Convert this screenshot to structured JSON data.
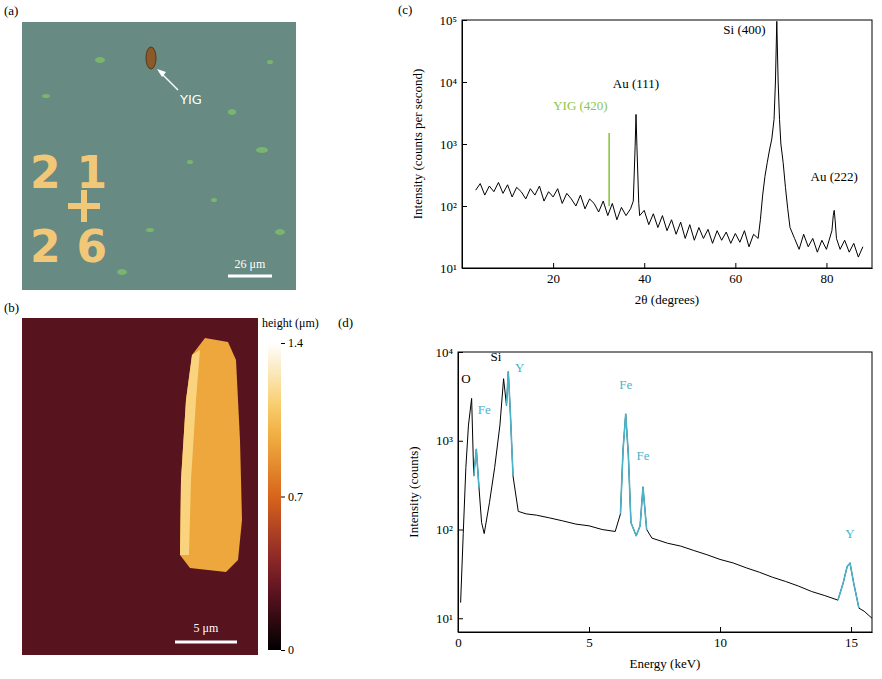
{
  "chart_data": [
    {
      "type": "image",
      "title": "(a)",
      "annotations": [
        "YIG"
      ],
      "markers": [
        "21",
        "26"
      ],
      "scale_bar": "26 μm"
    },
    {
      "type": "heatmap",
      "title": "(b)",
      "scale_bar": "5 μm",
      "colorbar": {
        "label": "height (μm)",
        "lim": [
          0,
          1.4
        ],
        "ticks": [
          0,
          0.7,
          1.4
        ]
      },
      "substrate_height": 0.25,
      "flake_height": 0.95,
      "edge_height": 1.15
    },
    {
      "type": "line",
      "title": "(c)",
      "x_label": "2θ (degrees)",
      "y_label": "Intensity (counts per second)",
      "log": "y",
      "xlim": [
        0,
        90
      ],
      "ylim": [
        10,
        100000
      ],
      "xticks": [
        20,
        40,
        60,
        80
      ],
      "yticks": [
        {
          "value": 10,
          "label": "10¹"
        },
        {
          "value": 100,
          "label": "10²"
        },
        {
          "value": 1000,
          "label": "10³"
        },
        {
          "value": 10000,
          "label": "10⁴"
        },
        {
          "value": 100000,
          "label": "10⁵"
        }
      ],
      "series": [
        {
          "color": "#000000",
          "x": [
            3,
            4,
            5,
            6,
            7,
            8,
            9,
            10,
            11,
            12,
            13,
            14,
            15,
            16,
            17,
            18,
            19,
            20,
            21,
            22,
            23,
            24,
            25,
            26,
            27,
            28,
            29,
            30,
            31,
            32,
            33,
            34,
            35,
            36,
            37,
            37.6,
            38.0,
            38.2,
            38.4,
            38.8,
            39,
            40,
            41,
            42,
            43,
            44,
            45,
            46,
            47,
            48,
            49,
            50,
            51,
            52,
            53,
            54,
            55,
            56,
            57,
            58,
            59,
            60,
            61,
            62,
            63,
            64,
            65,
            65.5,
            66,
            66.5,
            67,
            67.5,
            68,
            68.5,
            68.8,
            69.1,
            69.4,
            69.7,
            70,
            70.5,
            71,
            71.5,
            72,
            73,
            74,
            75,
            76,
            77,
            78,
            79,
            80,
            81.2,
            81.5,
            81.7,
            81.9,
            82.2,
            83,
            84,
            85,
            86,
            87,
            88
          ],
          "values": [
            180,
            230,
            150,
            210,
            170,
            240,
            160,
            220,
            140,
            200,
            170,
            130,
            190,
            150,
            210,
            120,
            170,
            140,
            190,
            110,
            160,
            130,
            100,
            150,
            90,
            130,
            110,
            80,
            120,
            70,
            110,
            60,
            95,
            70,
            90,
            120,
            900,
            3000,
            900,
            110,
            70,
            85,
            50,
            75,
            45,
            70,
            40,
            60,
            35,
            55,
            30,
            50,
            28,
            45,
            30,
            42,
            25,
            40,
            28,
            38,
            25,
            36,
            26,
            40,
            22,
            35,
            30,
            60,
            150,
            300,
            500,
            800,
            1200,
            2500,
            10000,
            95000,
            10000,
            2500,
            1000,
            500,
            200,
            90,
            45,
            30,
            20,
            35,
            22,
            30,
            18,
            28,
            20,
            40,
            70,
            85,
            60,
            30,
            20,
            28,
            18,
            25,
            15,
            22
          ]
        },
        {
          "color": "#8dc63f",
          "x": [
            32.3,
            32.3
          ],
          "values": [
            100,
            1500
          ]
        }
      ],
      "annotations": [
        {
          "text": "YIG (420)",
          "x": 26,
          "y": 3500,
          "color": "#8dc63f"
        },
        {
          "text": "Au (111)",
          "x": 38.2,
          "y": 8000,
          "color": "#000000"
        },
        {
          "text": "Si (400)",
          "x": 62,
          "y": 60000,
          "color": "#000000"
        },
        {
          "text": "Au (222)",
          "x": 81.7,
          "y": 250,
          "color": "#000000"
        }
      ]
    },
    {
      "type": "line",
      "title": "(d)",
      "x_label": "Energy (keV)",
      "y_label": "Intensity (counts)",
      "log": "y",
      "xlim": [
        0,
        15.8
      ],
      "ylim": [
        7,
        10000
      ],
      "xticks": [
        0,
        5,
        10,
        15
      ],
      "yticks": [
        {
          "value": 10,
          "label": "10¹"
        },
        {
          "value": 100,
          "label": "10²"
        },
        {
          "value": 1000,
          "label": "10³"
        },
        {
          "value": 10000,
          "label": "10⁴"
        }
      ],
      "x": [
        0.1,
        0.2,
        0.3,
        0.4,
        0.52,
        0.6,
        0.7,
        0.8,
        0.9,
        1.0,
        1.2,
        1.4,
        1.6,
        1.74,
        1.85,
        1.92,
        2.0,
        2.1,
        2.3,
        2.6,
        3,
        3.5,
        4,
        4.5,
        5,
        5.5,
        6,
        6.2,
        6.3,
        6.4,
        6.5,
        6.6,
        6.8,
        6.95,
        7.06,
        7.2,
        7.4,
        8,
        8.5,
        9,
        9.5,
        10,
        10.5,
        11,
        11.5,
        12,
        12.5,
        13,
        13.5,
        14,
        14.5,
        14.7,
        14.85,
        14.96,
        15.1,
        15.3,
        15.5,
        15.8
      ],
      "series": [
        {
          "color": "#000000",
          "values": [
            15,
            90,
            500,
            1500,
            3000,
            400,
            800,
            300,
            120,
            90,
            200,
            500,
            1500,
            5000,
            2500,
            6000,
            2000,
            400,
            160,
            150,
            145,
            135,
            125,
            115,
            110,
            100,
            95,
            150,
            800,
            2000,
            700,
            120,
            85,
            110,
            300,
            100,
            80,
            70,
            65,
            58,
            52,
            46,
            42,
            37,
            33,
            29,
            26,
            23,
            20,
            18,
            16,
            25,
            38,
            42,
            25,
            13,
            12,
            10
          ]
        },
        {
          "color": "#4db3c9",
          "values": [
            null,
            null,
            null,
            null,
            null,
            400,
            800,
            300,
            null,
            null,
            null,
            null,
            null,
            null,
            2500,
            6000,
            2000,
            400,
            null,
            null,
            null,
            null,
            null,
            null,
            null,
            null,
            null,
            150,
            800,
            2000,
            700,
            120,
            85,
            110,
            300,
            100,
            null,
            null,
            null,
            null,
            null,
            null,
            null,
            null,
            null,
            null,
            null,
            null,
            null,
            null,
            16,
            25,
            38,
            42,
            25,
            13,
            null,
            null
          ]
        }
      ],
      "annotations": [
        {
          "text": "O",
          "x": 0.3,
          "y": 4500,
          "color": "#000000"
        },
        {
          "text": "Fe",
          "x": 1.0,
          "y": 2000,
          "color": "#4db3c9"
        },
        {
          "text": "Si",
          "x": 1.45,
          "y": 8000,
          "color": "#000000"
        },
        {
          "text": "Y",
          "x": 2.35,
          "y": 6000,
          "color": "#4db3c9"
        },
        {
          "text": "Fe",
          "x": 6.4,
          "y": 3800,
          "color": "#4db3c9"
        },
        {
          "text": "Fe",
          "x": 7.06,
          "y": 600,
          "color": "#4db3c9"
        },
        {
          "text": "Y",
          "x": 14.96,
          "y": 80,
          "color": "#4db3c9"
        }
      ]
    }
  ]
}
